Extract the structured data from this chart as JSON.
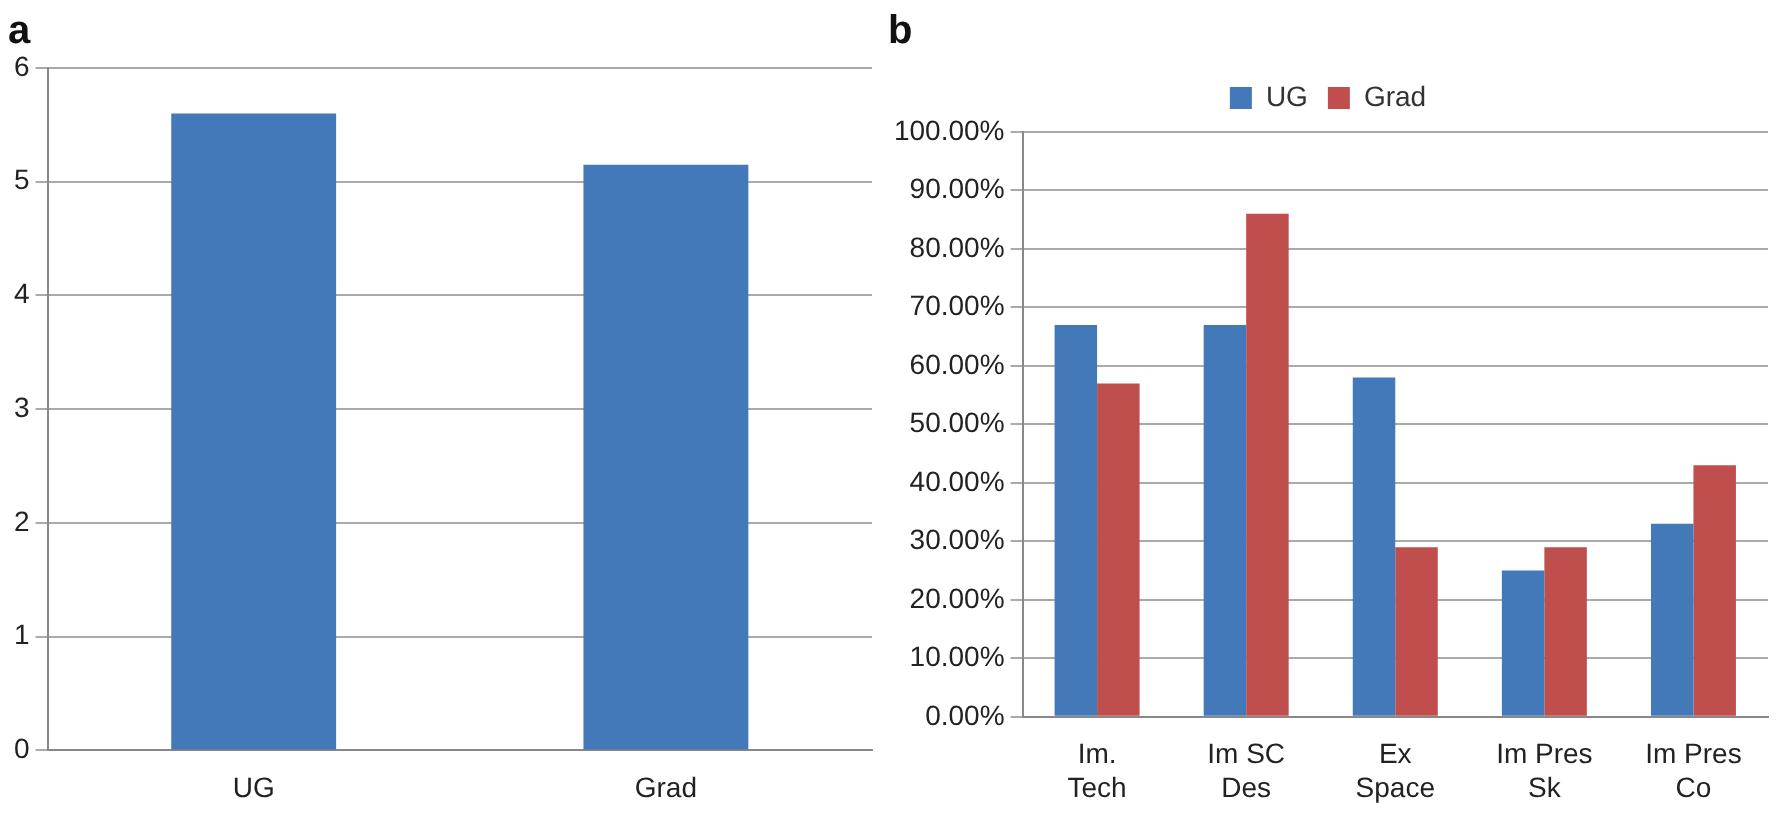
{
  "chart_data": [
    {
      "type": "bar",
      "title": "a",
      "categories": [
        "UG",
        "Grad"
      ],
      "values": [
        5.6,
        5.15
      ],
      "color": "#4479b9",
      "ylim": [
        0,
        6
      ],
      "yticks": [
        0,
        1,
        2,
        3,
        4,
        5,
        6
      ],
      "grid": "y",
      "legend": false
    },
    {
      "type": "bar",
      "title": "b",
      "categories": [
        "Im.\nTech",
        "Im SC\nDes",
        "Ex\nSpace",
        "Im Pres\nSk",
        "Im Pres\nCo"
      ],
      "series": [
        {
          "name": "UG",
          "color": "#4479b9",
          "values": [
            67,
            67,
            58,
            25,
            33
          ]
        },
        {
          "name": "Grad",
          "color": "#bf4e4d",
          "values": [
            57,
            86,
            29,
            29,
            43
          ]
        }
      ],
      "ylim": [
        0,
        100
      ],
      "yticks": [
        {
          "value": 0,
          "label": "0.00%"
        },
        {
          "value": 10,
          "label": "10.00%"
        },
        {
          "value": 20,
          "label": "20.00%"
        },
        {
          "value": 30,
          "label": "30.00%"
        },
        {
          "value": 40,
          "label": "40.00%"
        },
        {
          "value": 50,
          "label": "50.00%"
        },
        {
          "value": 60,
          "label": "60.00%"
        },
        {
          "value": 70,
          "label": "70.00%"
        },
        {
          "value": 80,
          "label": "80.00%"
        },
        {
          "value": 90,
          "label": "90.00%"
        },
        {
          "value": 100,
          "label": "100.00%"
        }
      ],
      "grid": "y",
      "legend": "top"
    }
  ]
}
